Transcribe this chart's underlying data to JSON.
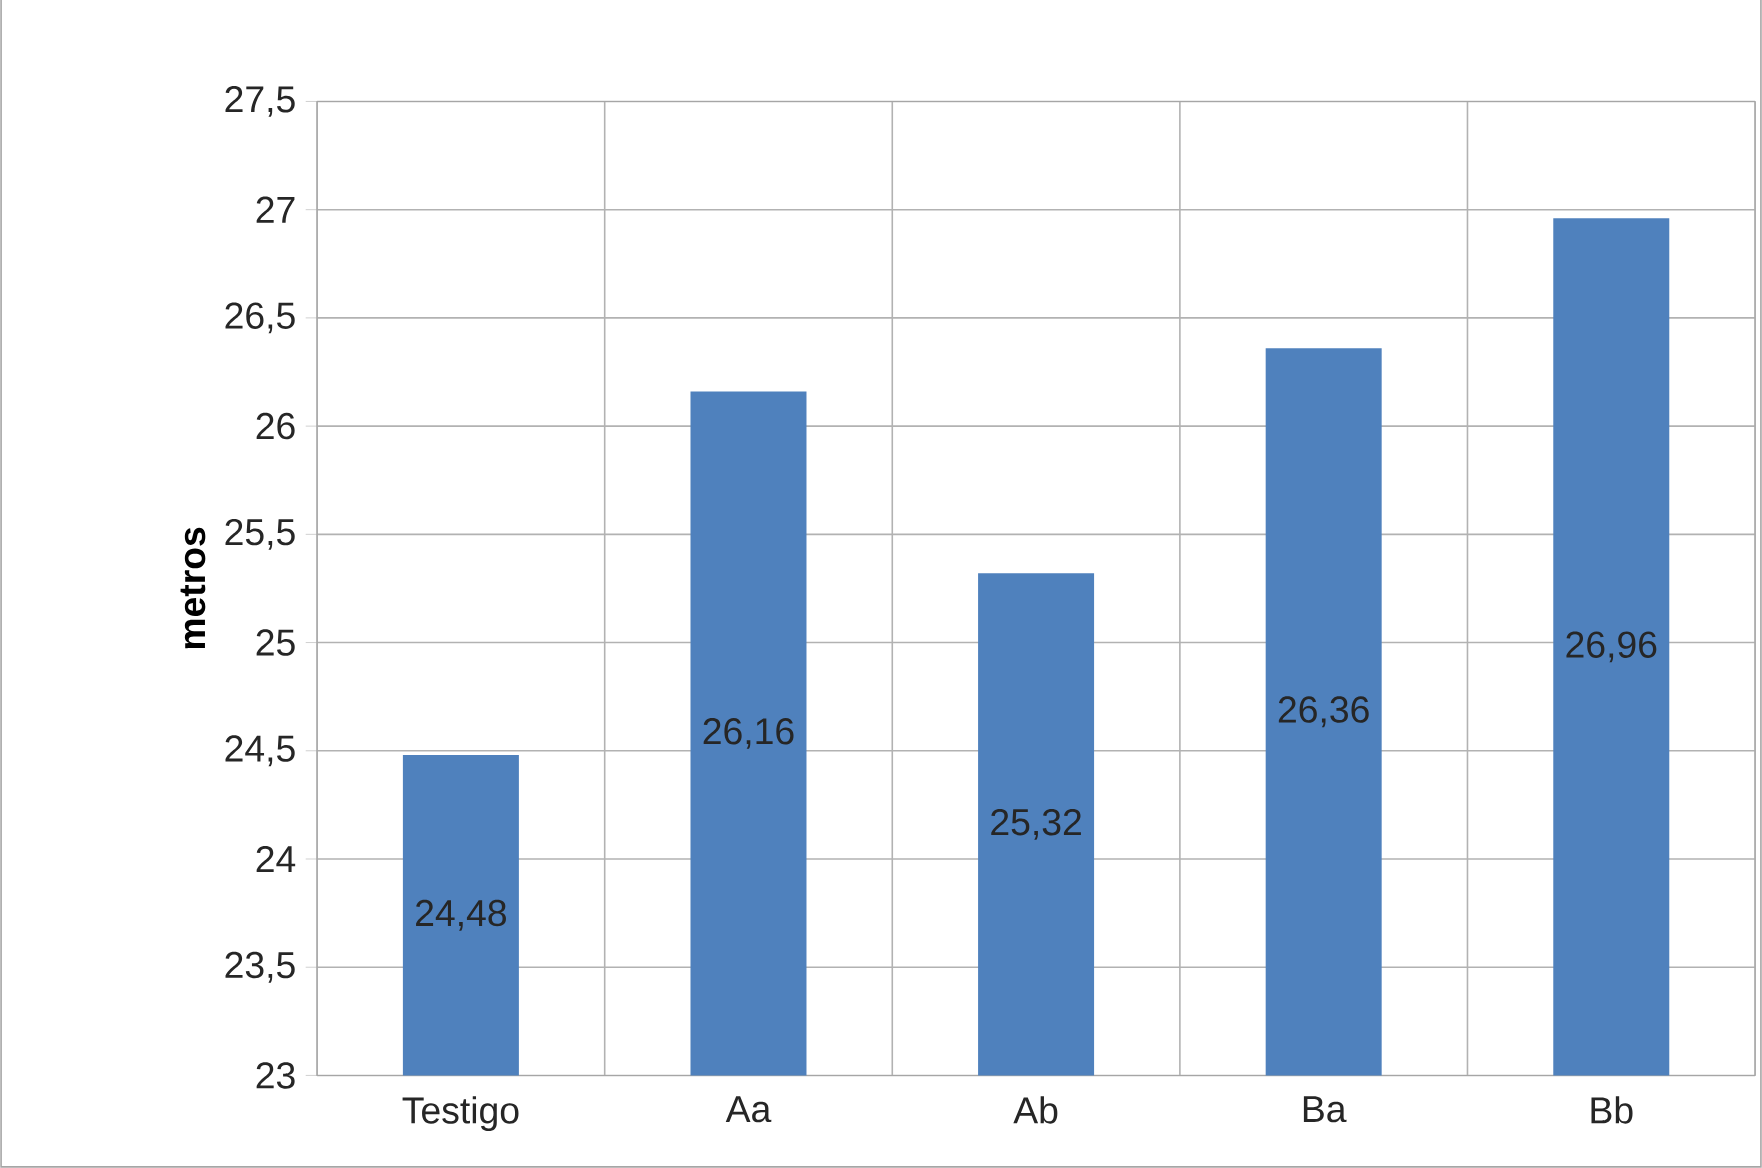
{
  "chart_data": {
    "type": "bar",
    "ylabel": "metros",
    "categories": [
      "Testigo",
      "Aa",
      "Ab",
      "Ba",
      "Bb"
    ],
    "values": [
      24.48,
      26.16,
      25.32,
      26.36,
      26.96
    ],
    "value_labels": [
      "24,48",
      "26,16",
      "25,32",
      "26,36",
      "26,96"
    ],
    "color": "#4f81bd",
    "ylim": [
      23,
      27.5
    ],
    "yticks": [
      {
        "value": 23,
        "label": "23"
      },
      {
        "value": 23.5,
        "label": "23,5"
      },
      {
        "value": 24,
        "label": "24"
      },
      {
        "value": 24.5,
        "label": "24,5"
      },
      {
        "value": 25,
        "label": "25"
      },
      {
        "value": 25.5,
        "label": "25,5"
      },
      {
        "value": 26,
        "label": "26"
      },
      {
        "value": 26.5,
        "label": "26,5"
      },
      {
        "value": 27,
        "label": "27"
      },
      {
        "value": 27.5,
        "label": "27,5"
      }
    ],
    "grid": true
  }
}
